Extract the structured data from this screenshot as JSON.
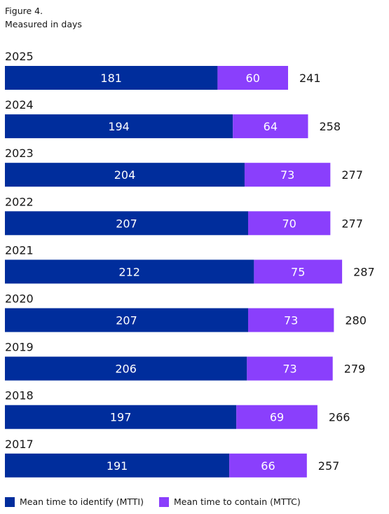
{
  "figure_label": "Figure 4.",
  "subtitle": "Measured in days",
  "colors": {
    "mtti": "#002d9c",
    "mttc": "#8a3ffc",
    "bar_text": "#ffffff",
    "text": "#161616"
  },
  "legend": [
    {
      "name": "Mean time to identify (MTTI)",
      "color": "#002d9c",
      "icon": "square-swatch"
    },
    {
      "name": "Mean time to contain (MTTC)",
      "color": "#8a3ffc",
      "icon": "square-swatch"
    }
  ],
  "chart_data": {
    "type": "bar",
    "orientation": "horizontal",
    "stacked": true,
    "categories": [
      "2025",
      "2024",
      "2023",
      "2022",
      "2021",
      "2020",
      "2019",
      "2018",
      "2017"
    ],
    "series": [
      {
        "name": "Mean time to identify (MTTI)",
        "values": [
          181,
          194,
          204,
          207,
          212,
          207,
          206,
          197,
          191
        ]
      },
      {
        "name": "Mean time to contain (MTTC)",
        "values": [
          60,
          64,
          73,
          70,
          75,
          73,
          73,
          69,
          66
        ]
      }
    ],
    "totals": [
      241,
      258,
      277,
      277,
      287,
      280,
      279,
      266,
      257
    ],
    "title": "",
    "xlabel": "",
    "ylabel": "",
    "grid": false,
    "legend_position": "bottom-left"
  }
}
